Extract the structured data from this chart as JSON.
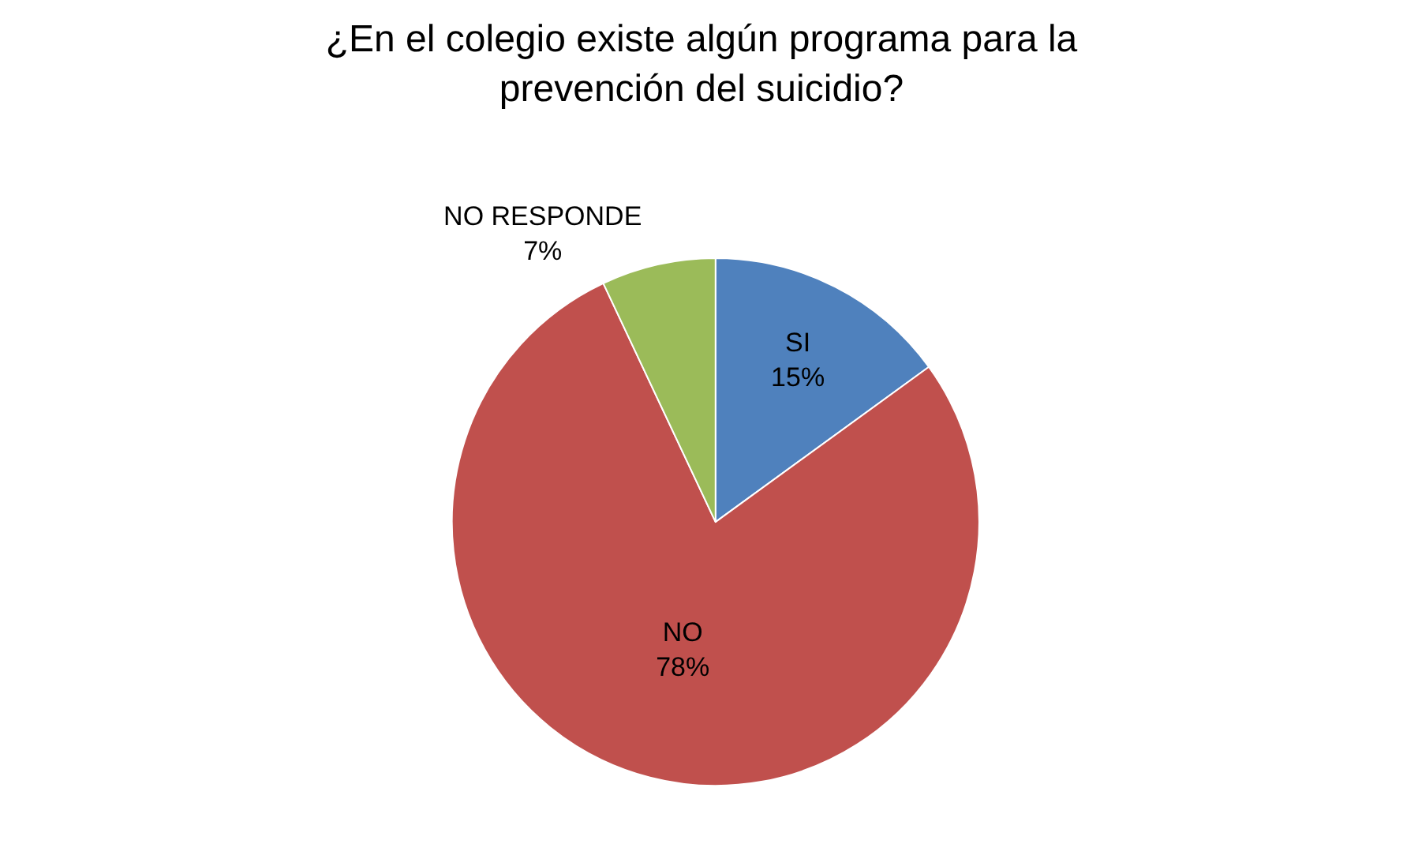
{
  "chart_data": {
    "type": "pie",
    "title": "¿En el colegio existe algún programa para la prevención del suicidio?",
    "categories": [
      "SI",
      "NO",
      "NO RESPONDE"
    ],
    "values": [
      15,
      78,
      7
    ],
    "value_labels": [
      "15%",
      "78%",
      "7%"
    ],
    "colors": [
      "#4f81bd",
      "#c0504d",
      "#9bbb59"
    ],
    "legend": false
  }
}
